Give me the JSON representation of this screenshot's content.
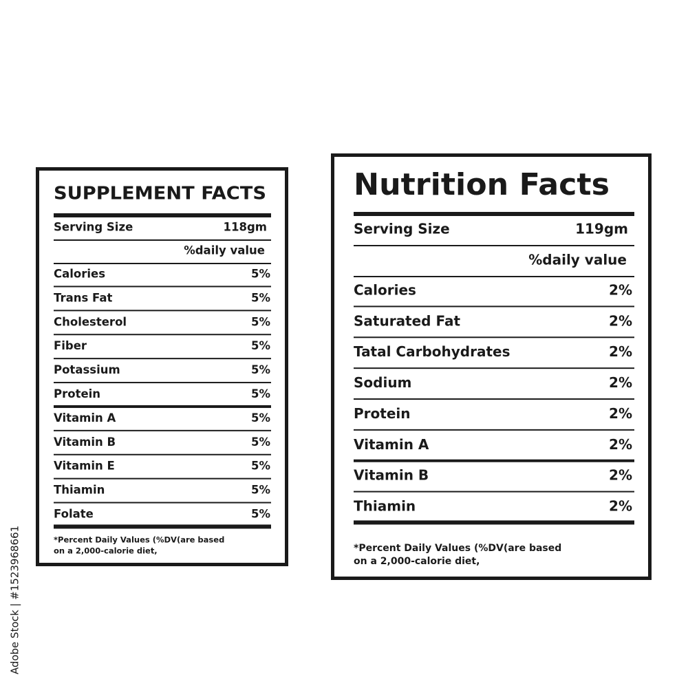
{
  "supplement_facts": {
    "title": "SUPPLEMENT FACTS",
    "serving_size": {
      "label": "Serving Size",
      "value": "118gm"
    },
    "daily_value_header": "%daily value",
    "rows": [
      {
        "label": "Calories",
        "value": "5%"
      },
      {
        "label": "Trans Fat",
        "value": "5%"
      },
      {
        "label": "Cholesterol",
        "value": "5%"
      },
      {
        "label": "Fiber",
        "value": "5%"
      },
      {
        "label": "Potassium",
        "value": "5%"
      },
      {
        "label": "Protein",
        "value": "5%"
      },
      {
        "label": "Vitamin A",
        "value": "5%"
      },
      {
        "label": "Vitamin B",
        "value": "5%"
      },
      {
        "label": "Vitamin E",
        "value": "5%"
      },
      {
        "label": "Thiamin",
        "value": "5%"
      },
      {
        "label": "Folate",
        "value": "5%"
      }
    ],
    "footnote": [
      "*Percent Daily Values (%DV(are  based",
      "on a 2,000-calorie diet,"
    ]
  },
  "nutrition_facts": {
    "title": "Nutrition Facts",
    "serving_size": {
      "label": "Serving Size",
      "value": "119gm"
    },
    "daily_value_header": "%daily value",
    "rows": [
      {
        "label": "Calories",
        "value": "2%"
      },
      {
        "label": "Saturated Fat",
        "value": "2%"
      },
      {
        "label": "Tatal Carbohydrates",
        "value": "2%"
      },
      {
        "label": "Sodium",
        "value": "2%"
      },
      {
        "label": "Protein",
        "value": "2%"
      },
      {
        "label": "Vitamin A",
        "value": "2%"
      },
      {
        "label": "Vitamin B",
        "value": "2%"
      },
      {
        "label": "Thiamin",
        "value": "2%"
      }
    ],
    "footnote": [
      "*Percent Daily Values (%DV(are  based",
      "on a 2,000-calorie diet,"
    ]
  },
  "watermark": "Adobe Stock | #1523968661"
}
